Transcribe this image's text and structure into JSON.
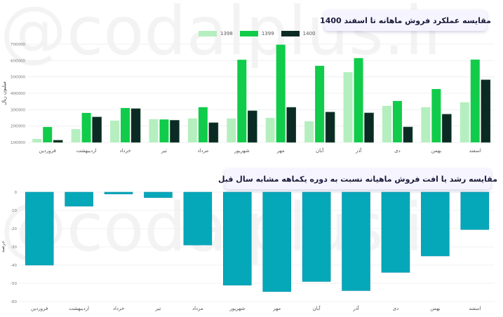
{
  "watermark": "@codalplus.ir",
  "chart_data": [
    {
      "type": "bar",
      "title": "مقایسه عملکرد فروش ماهانه تا اسفند 1400",
      "xlabel": "",
      "ylabel": "میلیون ریال",
      "ylim": [
        100000,
        700000
      ],
      "yticks": [
        "100000",
        "200000",
        "300000",
        "400000",
        "500000",
        "600000",
        "700000"
      ],
      "grid": true,
      "legend_position": "top-center",
      "categories": [
        "فروردین",
        "اردیبهشت",
        "خرداد",
        "تیر",
        "مرداد",
        "شهریور",
        "مهر",
        "آبان",
        "آذر",
        "دی",
        "بهمن",
        "اسفند"
      ],
      "series": [
        {
          "name": "1398",
          "color": "#b5efbf",
          "values": [
            121000,
            181000,
            233000,
            242000,
            246000,
            246000,
            250000,
            229000,
            529000,
            323000,
            315000,
            345000
          ]
        },
        {
          "name": "1399",
          "color": "#10cc4a",
          "values": [
            194000,
            280000,
            310000,
            240000,
            315000,
            605000,
            697000,
            568000,
            615000,
            353000,
            426000,
            606000
          ]
        },
        {
          "name": "1400",
          "color": "#0b2a24",
          "values": [
            113000,
            255000,
            306000,
            235000,
            220000,
            293000,
            314000,
            285000,
            280000,
            194000,
            272000,
            482000
          ]
        }
      ]
    },
    {
      "type": "bar",
      "title": "مقایسه رشد یا افت فروش ماهیانه نسبت به دوره یکماهه مشابه سال قبل",
      "xlabel": "",
      "ylabel": "درصد",
      "ylim": [
        -60,
        0
      ],
      "yticks": [
        "0",
        "-10",
        "-20",
        "-30",
        "-40",
        "-50",
        "-60"
      ],
      "grid": true,
      "categories": [
        "فروردین",
        "اردیبهشت",
        "خرداد",
        "تیر",
        "مرداد",
        "شهریور",
        "مهر",
        "آبان",
        "آذر",
        "دی",
        "بهمن",
        "اسفند"
      ],
      "series": [
        {
          "name": "درصد",
          "color": "#05a8b8",
          "values": [
            -40,
            -7.7,
            -1,
            -3,
            -29,
            -51,
            -54.5,
            -49,
            -54,
            -44,
            -35,
            -20.5
          ]
        }
      ]
    }
  ]
}
